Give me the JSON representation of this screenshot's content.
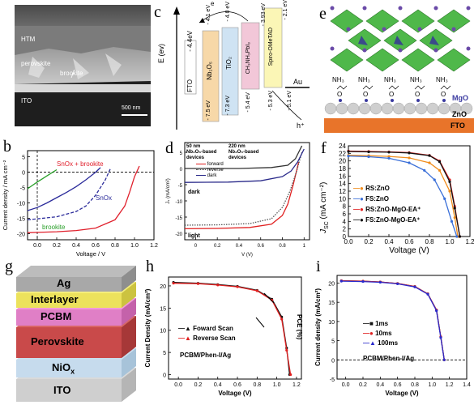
{
  "panels": {
    "a": {
      "label": "a",
      "layers": [
        "HTM",
        "perovskite",
        "brookite",
        "ITO"
      ],
      "scale": "500 nm"
    },
    "b": {
      "label": "b",
      "ylabel": "Current density / mA cm⁻²",
      "xlabel": "Voltage / V",
      "xticks": [
        "0.0",
        "0.2",
        "0.4",
        "0.6",
        "0.8",
        "1.0",
        "1.2"
      ],
      "yticks": [
        "5",
        "0",
        "-5",
        "-10",
        "-15",
        "-20"
      ],
      "series_labels": [
        "SnOx + brookite",
        "SnOx",
        "brookite"
      ]
    },
    "c": {
      "label": "c",
      "ylabel": "E (ev)",
      "fto": "FTO",
      "fto_level": "- 4.4eV",
      "materials": [
        "Nb₂O₅",
        "TiO₂",
        "CH₃NH₃PbI₃",
        "Spiro-OMeTAD",
        "Au"
      ],
      "top_levels": [
        "- 4.1 eV",
        "- 4.0 eV",
        "- 3.93 eV",
        "- 2.1 eV"
      ],
      "bottom_levels": [
        "- 7.5 eV",
        "- 7.3 eV",
        "- 5.4 eV",
        "- 5.3 eV",
        "- 5.1 eV"
      ],
      "electron": "e",
      "hole": "h⁺"
    },
    "d": {
      "label": "d",
      "ylabel": "Jₛ (mA/cm²)",
      "xlabel": "V (V)",
      "group1": [
        "50 nm",
        "Nb₂O₅-based",
        "devices"
      ],
      "group2": [
        "220 nm",
        "Nb₂O₅-based",
        "devices"
      ],
      "legend": [
        "forward",
        "reverse",
        "dark"
      ],
      "dark": "dark",
      "light": "light",
      "xticks": [
        "0",
        "0.2",
        "0.4",
        "0.6",
        "0.8",
        "1"
      ],
      "yticks": [
        "5",
        "0",
        "-5",
        "-10",
        "-15",
        "-20"
      ]
    },
    "e": {
      "label": "e",
      "mgo": "MgO",
      "zno": "ZnO",
      "fto": "FTO",
      "nh3": "NH₃",
      "o": "O"
    },
    "f": {
      "label": "f",
      "ylabel": "J",
      "ylabel_sub": "SC",
      "ylabel_unit": " (mA cm⁻²)",
      "xlabel": "Voltage (V)",
      "xticks": [
        "0.0",
        "0.2",
        "0.4",
        "0.6",
        "0.8",
        "1.0",
        "1.2"
      ],
      "yticks": [
        "0",
        "2",
        "4",
        "6",
        "8",
        "10",
        "12",
        "14",
        "16",
        "18",
        "20",
        "22",
        "24"
      ],
      "legend": [
        "RS:ZnO",
        "FS:ZnO",
        "RS:ZnO-MgO-EA⁺",
        "FS:ZnO-MgO-EA⁺"
      ]
    },
    "g": {
      "label": "g",
      "layers": [
        "Ag",
        "Interlayer",
        "PCBM",
        "Perovskite",
        "NiO",
        "ITO"
      ],
      "nio_sub": "x"
    },
    "h": {
      "label": "h",
      "ylabel": "Current Density (mA/cm²)",
      "y2label": "PCE (%)",
      "xlabel": "Voltage (V)",
      "xticks": [
        "0.0",
        "0.2",
        "0.4",
        "0.6",
        "0.8",
        "1.0",
        "1.2"
      ],
      "yticks": [
        "0",
        "5",
        "10",
        "15",
        "20"
      ],
      "legend": [
        "Foward Scan",
        "Reverse Scan"
      ],
      "note": "PCBM/Phen-I/Ag"
    },
    "i": {
      "label": "i",
      "ylabel": "Current density (mA/cm²)",
      "xlabel": "Voltage (V)",
      "xticks": [
        "0.0",
        "0.2",
        "0.4",
        "0.6",
        "0.8",
        "1.0",
        "1.2",
        "1.4"
      ],
      "yticks": [
        "-5",
        "0",
        "5",
        "10",
        "15",
        "20"
      ],
      "legend": [
        "1ms",
        "10ms",
        "100ms"
      ],
      "note": "PCBM/Phen-I/Ag"
    }
  },
  "chart_data": [
    {
      "id": "b",
      "type": "line",
      "xlabel": "Voltage / V",
      "ylabel": "Current density / mA cm⁻²",
      "xlim": [
        -0.1,
        1.2
      ],
      "ylim": [
        -22,
        7
      ],
      "series": [
        {
          "name": "SnOx + brookite",
          "style": "solid",
          "color": "#e0202c",
          "x": [
            -0.1,
            0,
            0.2,
            0.4,
            0.6,
            0.8,
            0.9,
            0.95,
            1.0,
            1.05
          ],
          "y": [
            -19.7,
            -19.6,
            -19.4,
            -19.0,
            -18.2,
            -15.5,
            -11,
            -6.5,
            -1.5,
            2
          ]
        },
        {
          "name": "",
          "style": "dashed",
          "color": "#2a2a9a",
          "x": [
            -0.1,
            0,
            0.2,
            0.4,
            0.5,
            0.6,
            0.7,
            0.75
          ],
          "y": [
            -15.5,
            -15.2,
            -14.5,
            -12.8,
            -11.0,
            -7.5,
            -2.5,
            1
          ]
        },
        {
          "name": "SnOx",
          "style": "solid",
          "color": "#2a2a9a",
          "x": [
            -0.1,
            0,
            0.1,
            0.2,
            0.3,
            0.4,
            0.5,
            0.6,
            0.65
          ],
          "y": [
            -12.5,
            -11.5,
            -10.0,
            -8.3,
            -6.6,
            -4.7,
            -2.5,
            0,
            1.5
          ]
        },
        {
          "name": "brookite",
          "style": "solid",
          "color": "#2aa02a",
          "x": [
            -0.1,
            0,
            0.05,
            0.1,
            0.15,
            0.2
          ],
          "y": [
            -5.4,
            -3.2,
            -2.2,
            -1.2,
            -0.2,
            0.8
          ]
        }
      ]
    },
    {
      "id": "d",
      "type": "line",
      "xlabel": "V (V)",
      "ylabel": "Jₛ (mA/cm²)",
      "xlim": [
        -0.1,
        1.05
      ],
      "ylim": [
        -22,
        8
      ],
      "series": [
        {
          "name": "forward",
          "style": "solid",
          "color": "#e02020",
          "x": [
            -0.1,
            0.2,
            0.5,
            0.7,
            0.8,
            0.85,
            0.9,
            0.95
          ],
          "y": [
            -18.6,
            -18.5,
            -18.2,
            -17.2,
            -14.5,
            -11,
            -5,
            2
          ]
        },
        {
          "name": "reverse",
          "style": "dotted",
          "color": "#555",
          "x": [
            -0.1,
            0.2,
            0.5,
            0.7,
            0.8,
            0.87,
            0.93,
            0.98
          ],
          "y": [
            -17.5,
            -17.4,
            -17.0,
            -15.5,
            -12.0,
            -7,
            -1,
            5
          ]
        },
        {
          "name": "dark",
          "style": "solid",
          "color": "#2a2a8a",
          "x": [
            -0.1,
            0.3,
            0.6,
            0.8,
            0.88,
            0.94,
            1.0
          ],
          "y": [
            -4.3,
            -4.2,
            -3.8,
            -2.5,
            -0.8,
            2,
            6
          ]
        },
        {
          "name": "",
          "style": "solid",
          "color": "#333",
          "x": [
            -0.1,
            0.4,
            0.7,
            0.85,
            0.92,
            0.98
          ],
          "y": [
            0,
            0,
            0.3,
            1,
            3,
            7
          ]
        }
      ]
    },
    {
      "id": "f",
      "type": "line",
      "xlabel": "Voltage (V)",
      "ylabel": "J_SC (mA cm⁻²)",
      "xlim": [
        0,
        1.2
      ],
      "ylim": [
        0,
        24
      ],
      "series": [
        {
          "name": "RS:ZnO",
          "color": "#f08c1c",
          "x": [
            0,
            0.2,
            0.4,
            0.6,
            0.8,
            0.9,
            1.0,
            1.05,
            1.08
          ],
          "y": [
            21.5,
            21.4,
            21.2,
            20.8,
            19.5,
            17.5,
            12,
            5,
            0
          ]
        },
        {
          "name": "FS:ZnO",
          "color": "#3a6fd8",
          "x": [
            0,
            0.2,
            0.4,
            0.6,
            0.75,
            0.85,
            0.95,
            1.02,
            1.07
          ],
          "y": [
            21.3,
            21.1,
            20.7,
            19.5,
            17.5,
            15,
            10,
            4,
            0
          ]
        },
        {
          "name": "RS:ZnO-MgO-EA⁺",
          "color": "#e02020",
          "x": [
            0,
            0.2,
            0.4,
            0.6,
            0.8,
            0.9,
            1.0,
            1.05,
            1.1
          ],
          "y": [
            22.6,
            22.5,
            22.4,
            22.2,
            21.5,
            20,
            15,
            8,
            0
          ]
        },
        {
          "name": "FS:ZnO-MgO-EA⁺",
          "color": "#111",
          "x": [
            0,
            0.2,
            0.4,
            0.6,
            0.8,
            0.9,
            1.0,
            1.05,
            1.1
          ],
          "y": [
            22.5,
            22.4,
            22.3,
            22.1,
            21.4,
            19.8,
            14.5,
            7.5,
            0
          ]
        }
      ]
    },
    {
      "id": "h",
      "type": "line",
      "xlabel": "Voltage (V)",
      "ylabel": "Current Density (mA/cm²)",
      "xlim": [
        -0.1,
        1.25
      ],
      "ylim": [
        -1,
        22
      ],
      "series": [
        {
          "name": "Foward Scan",
          "color": "#111",
          "x": [
            -0.05,
            0.2,
            0.4,
            0.6,
            0.8,
            0.95,
            1.05,
            1.1,
            1.13
          ],
          "y": [
            20.8,
            20.6,
            20.3,
            19.9,
            19.0,
            17.0,
            13,
            6,
            0
          ]
        },
        {
          "name": "Reverse Scan",
          "color": "#e02020",
          "x": [
            -0.05,
            0.2,
            0.4,
            0.6,
            0.8,
            0.95,
            1.05,
            1.1,
            1.14
          ],
          "y": [
            20.6,
            20.5,
            20.2,
            19.8,
            18.9,
            16.8,
            12.5,
            5.5,
            0
          ]
        }
      ]
    },
    {
      "id": "i",
      "type": "line",
      "xlabel": "Voltage (V)",
      "ylabel": "Current density (mA/cm²)",
      "xlim": [
        -0.1,
        1.4
      ],
      "ylim": [
        -5,
        22
      ],
      "series": [
        {
          "name": "1ms",
          "color": "#111",
          "x": [
            -0.05,
            0.2,
            0.4,
            0.6,
            0.8,
            0.95,
            1.05,
            1.1,
            1.14
          ],
          "y": [
            20.6,
            20.5,
            20.3,
            19.9,
            19.1,
            17.2,
            13,
            6,
            0
          ]
        },
        {
          "name": "10ms",
          "color": "#e02020",
          "x": [
            -0.05,
            0.2,
            0.4,
            0.6,
            0.8,
            0.95,
            1.05,
            1.1,
            1.14
          ],
          "y": [
            20.6,
            20.5,
            20.3,
            19.9,
            19.1,
            17.2,
            13,
            6,
            0
          ]
        },
        {
          "name": "100ms",
          "color": "#2a2acc",
          "x": [
            -0.05,
            0.2,
            0.4,
            0.6,
            0.8,
            0.95,
            1.05,
            1.1,
            1.14
          ],
          "y": [
            20.5,
            20.4,
            20.2,
            19.8,
            19.0,
            17.1,
            12.8,
            5.8,
            0
          ]
        }
      ]
    }
  ]
}
